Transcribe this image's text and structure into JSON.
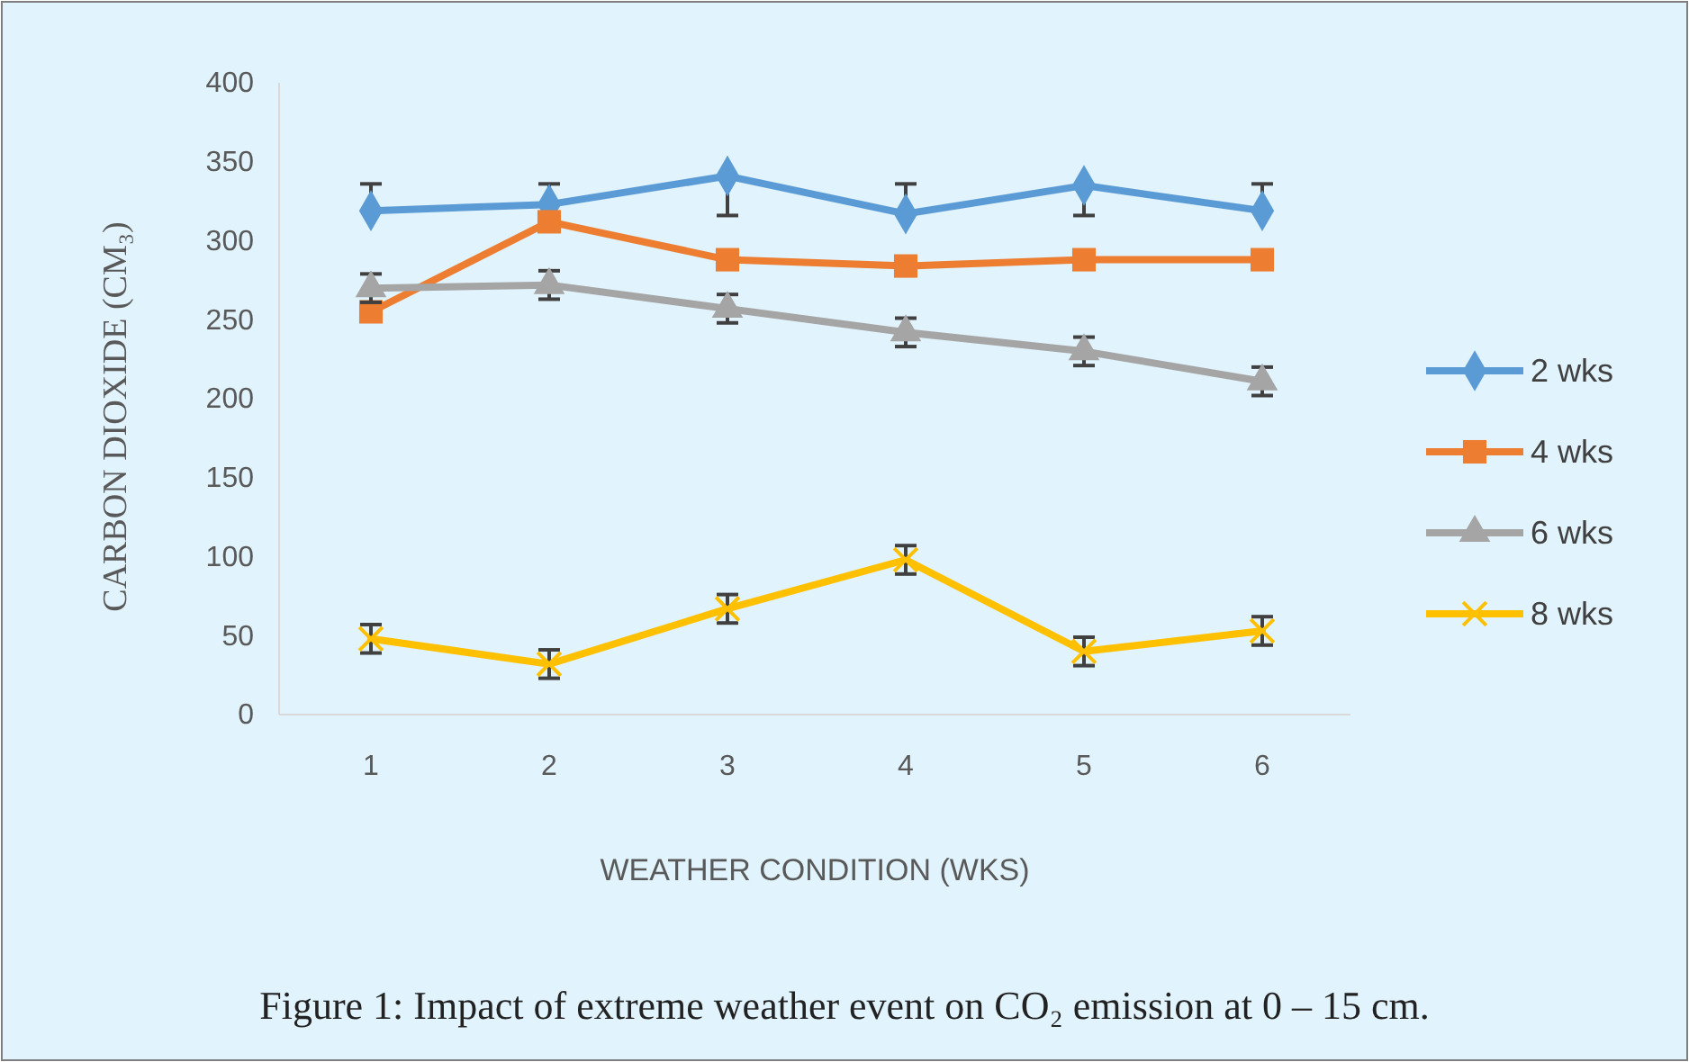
{
  "chart_data": {
    "type": "line",
    "title": "Figure 1: Impact of extreme weather event on CO₂ emission at 0 – 15 cm.",
    "xlabel": "WEATHER CONDITION (WKS)",
    "ylabel": "CARBON DIOXIDE (CM₃)",
    "categories": [
      "1",
      "2",
      "3",
      "4",
      "5",
      "6"
    ],
    "ylim": [
      0,
      400
    ],
    "yticks": [
      0,
      50,
      100,
      150,
      200,
      250,
      300,
      350,
      400
    ],
    "grid": false,
    "legend": "right",
    "line_style": "solid",
    "series": [
      {
        "name": "2 wks",
        "color": "#5b9bd5",
        "marker": "diamond",
        "values": [
          319,
          323,
          341,
          317,
          335,
          319
        ],
        "errors": [
          [
            319,
            336
          ],
          [
            323,
            336
          ],
          [
            316,
            341
          ],
          [
            317,
            336
          ],
          [
            316,
            335
          ],
          [
            319,
            336
          ]
        ]
      },
      {
        "name": "4 wks",
        "color": "#ed7d31",
        "marker": "square",
        "values": [
          255,
          312,
          288,
          284,
          288,
          288
        ]
      },
      {
        "name": "6 wks",
        "color": "#a5a5a5",
        "marker": "triangle",
        "values": [
          270,
          272,
          257,
          242,
          230,
          211
        ],
        "errors": [
          9,
          9,
          9,
          9,
          9,
          9
        ]
      },
      {
        "name": "8 wks",
        "color": "#ffc000",
        "marker": "cross",
        "values": [
          48,
          32,
          67,
          98,
          40,
          53
        ],
        "errors": [
          9,
          9,
          9,
          9,
          9,
          9
        ]
      }
    ]
  }
}
